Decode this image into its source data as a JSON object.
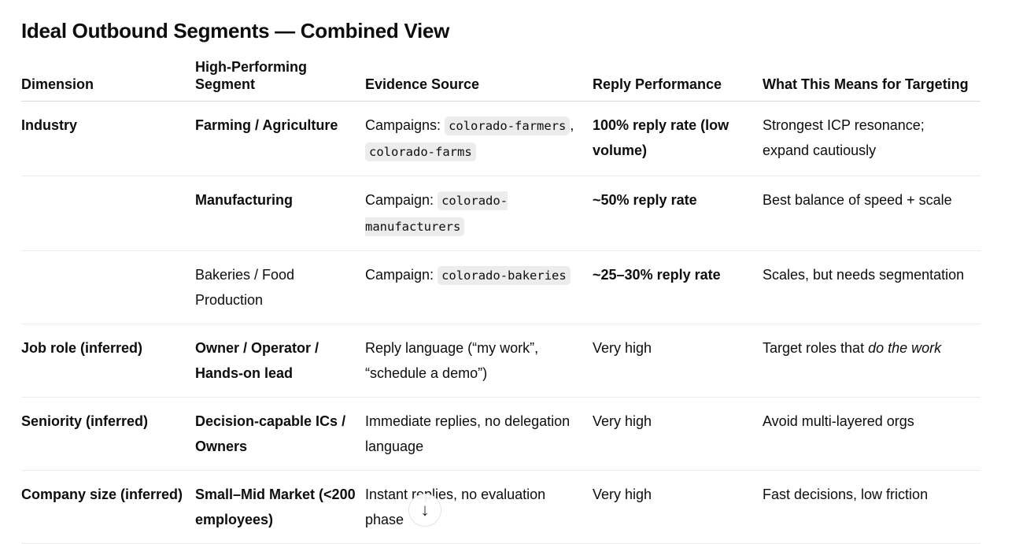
{
  "title": "Ideal Outbound Segments — Combined View",
  "headers": [
    "Dimension",
    "High-Performing Segment",
    "Evidence Source",
    "Reply Performance",
    "What This Means for Targeting"
  ],
  "rows": [
    {
      "dimension": "Industry",
      "segment": "Farming / Agriculture",
      "segment_bold": true,
      "evidence_prefix": "Campaigns: ",
      "codes": [
        "colorado-farmers",
        "colorado-farms"
      ],
      "performance": "100% reply rate (low volume)",
      "performance_bold": true,
      "meaning": "Strongest ICP resonance; expand cautiously"
    },
    {
      "dimension": "",
      "segment": "Manufacturing",
      "segment_bold": true,
      "evidence_prefix": "Campaign: ",
      "codes": [
        "colorado-manufacturers"
      ],
      "performance": "~50% reply rate",
      "performance_bold": true,
      "meaning": "Best balance of speed + scale"
    },
    {
      "dimension": "",
      "segment": "Bakeries / Food Production",
      "segment_bold": false,
      "evidence_prefix": "Campaign: ",
      "codes": [
        "colorado-bakeries"
      ],
      "performance": "~25–30% reply rate",
      "performance_bold": true,
      "meaning": "Scales, but needs segmentation"
    },
    {
      "dimension": "Job role (inferred)",
      "segment": "Owner / Operator / Hands-on lead",
      "segment_bold": true,
      "evidence": "Reply language (“my work”, “schedule a demo”)",
      "performance": "Very high",
      "performance_bold": false,
      "meaning_prefix": "Target roles that ",
      "meaning_em": "do the work"
    },
    {
      "dimension": "Seniority (inferred)",
      "segment": "Decision-capable ICs / Owners",
      "segment_bold": true,
      "evidence": "Immediate replies, no delegation language",
      "performance": "Very high",
      "performance_bold": false,
      "meaning": "Avoid multi-layered orgs"
    },
    {
      "dimension": "Company size (inferred)",
      "segment": "Small–Mid Market (<200 employees)",
      "segment_bold": true,
      "evidence": "Instant replies, no evaluation phase",
      "performance": "Very high",
      "performance_bold": false,
      "meaning": "Fast decisions, low friction"
    }
  ],
  "scroll_button_icon": "arrow-down-icon"
}
